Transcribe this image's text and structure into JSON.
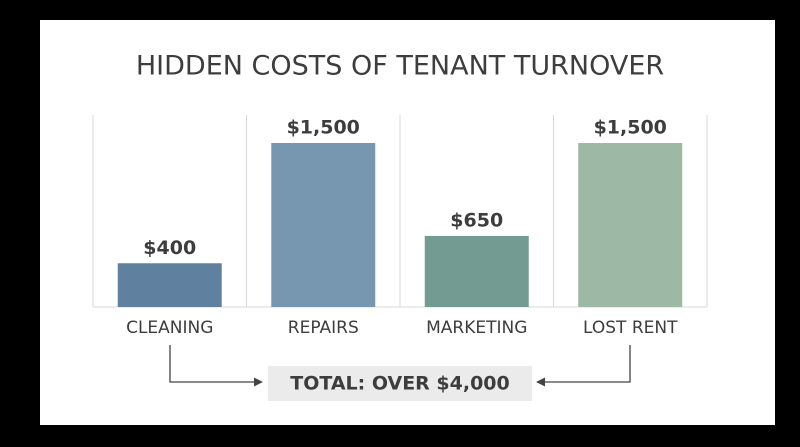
{
  "chart_data": {
    "type": "bar",
    "title": "HIDDEN COSTS OF TENANT TURNOVER",
    "categories": [
      "CLEANING",
      "REPAIRS",
      "MARKETING",
      "LOST RENT"
    ],
    "values": [
      400,
      1500,
      650,
      1500
    ],
    "value_labels": [
      "$400",
      "$1,500",
      "$650",
      "$1,500"
    ],
    "colors": [
      "#60809f",
      "#7797b0",
      "#739b91",
      "#9db9a6"
    ],
    "annotation": "TOTAL: OVER $4,000"
  }
}
